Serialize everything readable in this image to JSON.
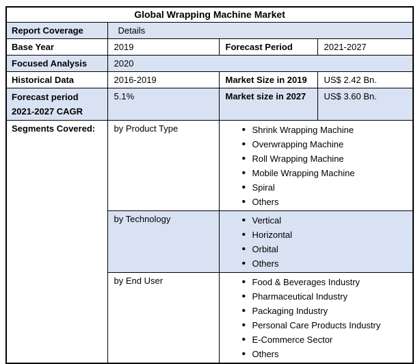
{
  "table": {
    "title": "Global Wrapping Machine Market",
    "colors": {
      "highlight_row": "#d9e2f3",
      "plain_row": "#ffffff",
      "border": "#000000",
      "text": "#000000"
    },
    "coverage": {
      "report_coverage_label": "Report Coverage",
      "report_coverage_value": "Details",
      "base_year_label": "Base Year",
      "base_year_value": "2019",
      "forecast_period_label": "Forecast Period",
      "forecast_period_value": "2021-2027",
      "focused_analysis_label": "Focused Analysis",
      "focused_analysis_value": "2020",
      "historical_data_label": "Historical Data",
      "historical_data_value": "2016-2019",
      "market_size_2019_label": "Market Size in 2019",
      "market_size_2019_value": "US$ 2.42 Bn.",
      "forecast_cagr_label": "Forecast period 2021-2027 CAGR",
      "forecast_cagr_value": "5.1%",
      "market_size_2027_label": "Market size in 2027",
      "market_size_2027_value": "US$ 3.60 Bn.",
      "segments_covered_label": "Segments Covered:"
    },
    "segments": [
      {
        "group": "by Product Type",
        "items": [
          "Shrink Wrapping Machine",
          "Overwrapping Machine",
          "Roll Wrapping Machine",
          "Mobile Wrapping Machine",
          "Spiral",
          "Others"
        ]
      },
      {
        "group": "by Technology",
        "items": [
          "Vertical",
          "Horizontal",
          "Orbital",
          "Others"
        ]
      },
      {
        "group": "by End User",
        "items": [
          "Food & Beverages Industry",
          "Pharmaceutical Industry",
          "Packaging Industry",
          "Personal Care Products Industry",
          "E-Commerce Sector",
          "Others"
        ]
      }
    ]
  }
}
